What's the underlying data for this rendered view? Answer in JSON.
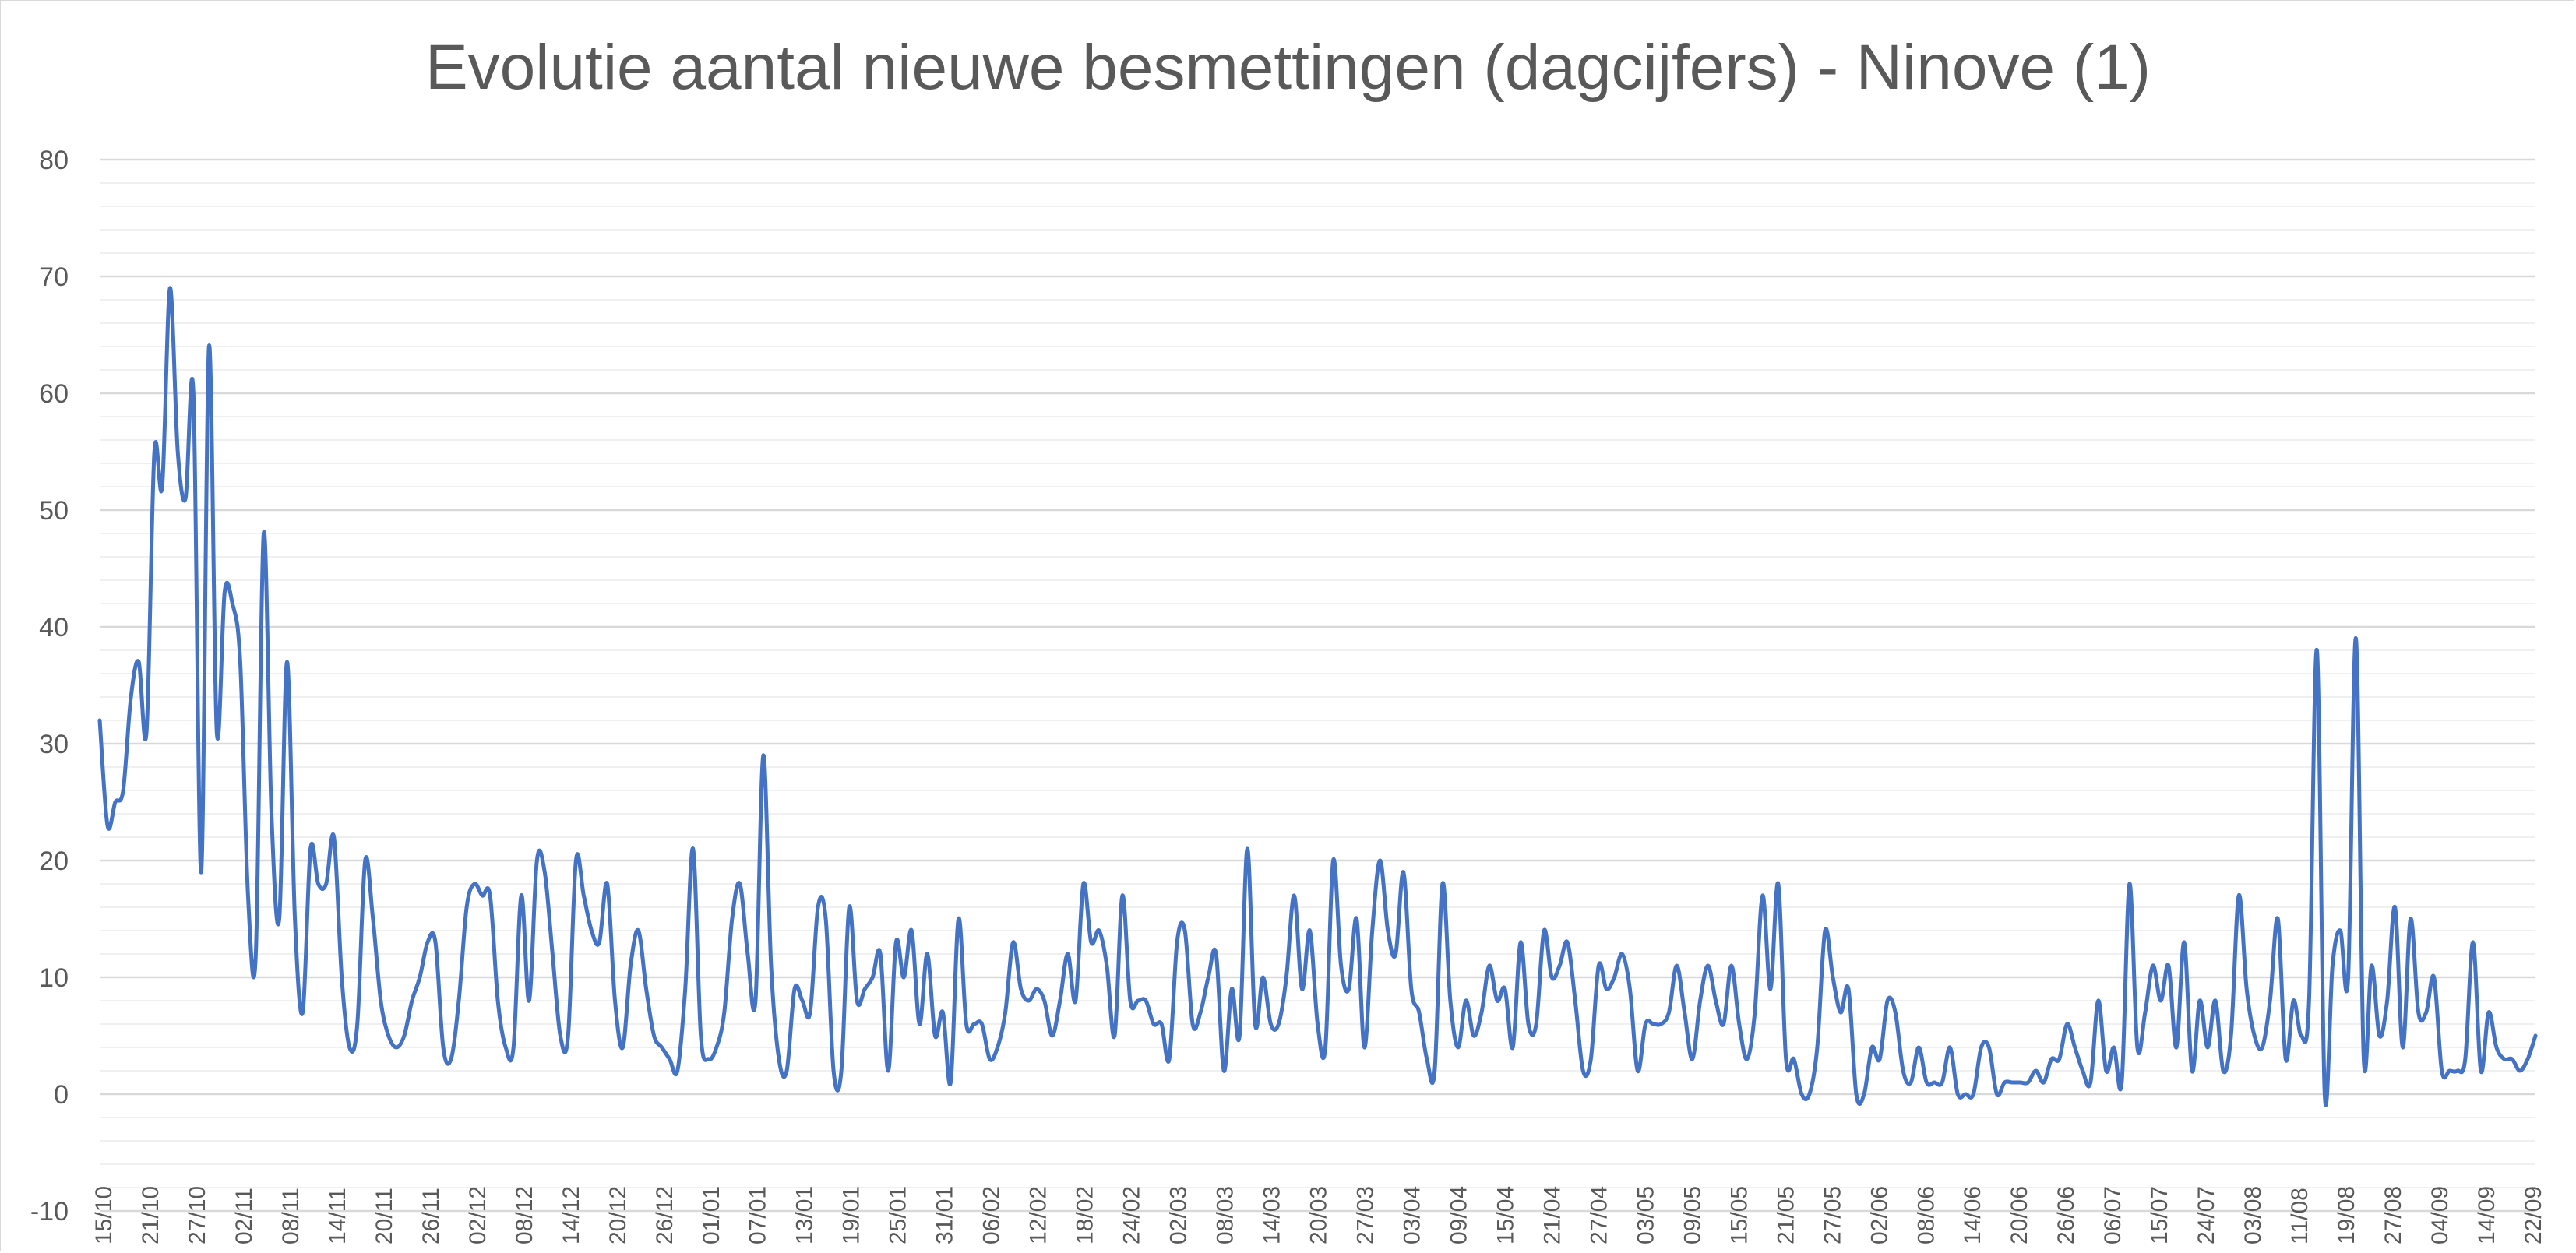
{
  "chart_data": {
    "type": "line",
    "title": "Evolutie aantal nieuwe besmettingen (dagcijfers) - Ninove (1)",
    "xlabel": "",
    "ylabel": "",
    "ylim": [
      -10,
      80
    ],
    "yticks": [
      -10,
      0,
      10,
      20,
      30,
      40,
      50,
      60,
      70,
      80
    ],
    "grid": true,
    "legend": "none",
    "line_color": "#4472C4",
    "x_ticks": [
      "15/10",
      "21/10",
      "27/10",
      "02/11",
      "08/11",
      "14/11",
      "20/11",
      "26/11",
      "02/12",
      "08/12",
      "14/12",
      "20/12",
      "26/12",
      "01/01",
      "07/01",
      "13/01",
      "19/01",
      "25/01",
      "31/01",
      "06/02",
      "12/02",
      "18/02",
      "24/02",
      "02/03",
      "08/03",
      "14/03",
      "20/03",
      "27/03",
      "03/04",
      "09/04",
      "15/04",
      "21/04",
      "27/04",
      "03/05",
      "09/05",
      "15/05",
      "21/05",
      "27/05",
      "02/06",
      "08/06",
      "14/06",
      "20/06",
      "26/06",
      "06/07",
      "15/07",
      "24/07",
      "03/08",
      "11/08",
      "19/08",
      "27/08",
      "04/09",
      "14/09",
      "22/09"
    ],
    "series": [
      {
        "values": [
          32,
          23,
          25,
          26,
          34,
          37,
          31,
          55,
          52,
          69,
          55,
          51,
          60,
          19,
          64,
          31,
          43,
          42,
          37,
          17,
          12,
          48,
          24,
          15,
          37,
          15,
          7,
          21,
          18,
          18,
          22,
          10,
          4,
          6,
          20,
          15,
          8,
          5,
          4,
          5,
          8,
          10,
          13,
          13,
          4,
          3,
          8,
          16,
          18,
          17,
          17,
          8,
          4,
          4,
          17,
          8,
          20,
          19,
          12,
          5,
          5,
          20,
          17,
          14,
          13,
          18,
          8,
          4,
          11,
          14,
          9,
          5,
          4,
          3,
          2,
          9,
          21,
          5,
          3,
          4,
          7,
          15,
          18,
          12,
          8,
          29,
          11,
          3,
          2,
          9,
          8,
          7,
          16,
          15,
          2,
          2,
          16,
          8,
          9,
          10,
          12,
          2,
          13,
          10,
          14,
          6,
          12,
          5,
          7,
          1,
          15,
          6,
          6,
          6,
          3,
          4,
          7,
          13,
          9,
          8,
          9,
          8,
          5,
          8,
          12,
          8,
          18,
          13,
          14,
          11,
          5,
          17,
          8,
          8,
          8,
          6,
          6,
          3,
          13,
          14,
          6,
          7,
          10,
          12,
          2,
          9,
          5,
          21,
          6,
          10,
          6,
          6,
          10,
          17,
          9,
          14,
          6,
          4,
          20,
          11,
          9,
          15,
          4,
          14,
          20,
          14,
          12,
          19,
          9,
          7,
          3,
          2,
          18,
          8,
          4,
          8,
          5,
          7,
          11,
          8,
          9,
          4,
          13,
          6,
          6,
          14,
          10,
          11,
          13,
          8,
          2,
          3,
          11,
          9,
          10,
          12,
          9,
          2,
          6,
          6,
          6,
          7,
          11,
          7,
          3,
          8,
          11,
          8,
          6,
          11,
          6,
          3,
          7,
          17,
          9,
          18,
          3,
          3,
          0,
          0,
          4,
          14,
          10,
          7,
          9,
          0,
          0,
          4,
          3,
          8,
          7,
          2,
          1,
          4,
          1,
          1,
          1,
          4,
          0,
          0,
          0,
          4,
          4,
          0,
          1,
          1,
          1,
          1,
          2,
          1,
          3,
          3,
          6,
          4,
          2,
          1,
          8,
          2,
          4,
          1,
          18,
          4,
          7,
          11,
          8,
          11,
          4,
          13,
          2,
          8,
          4,
          8,
          2,
          5,
          17,
          9,
          5,
          4,
          8,
          15,
          3,
          8,
          5,
          8,
          38,
          0,
          11,
          14,
          10,
          39,
          3,
          11,
          5,
          8,
          16,
          4,
          15,
          7,
          7,
          10,
          2,
          2,
          2,
          3,
          13,
          2,
          7,
          4,
          3,
          3,
          2,
          3,
          5
        ]
      }
    ]
  }
}
